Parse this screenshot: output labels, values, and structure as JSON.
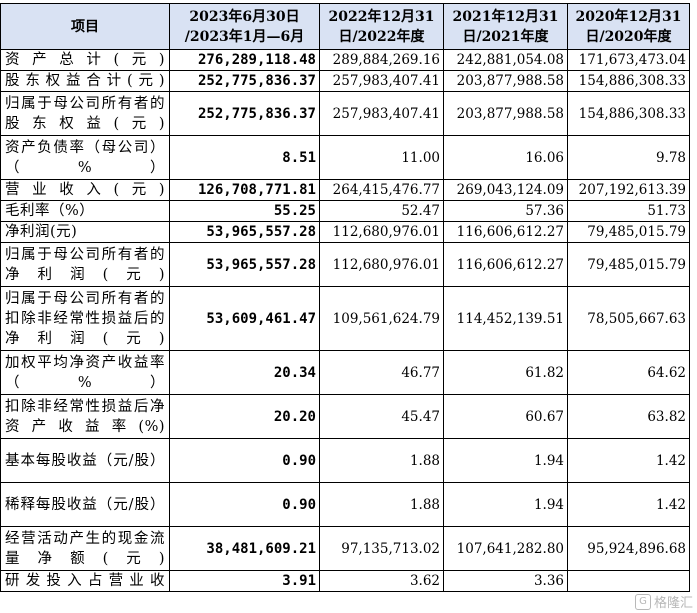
{
  "header": {
    "item": "项目",
    "col1_line1": "2023年6月30日",
    "col1_line2": "/2023年1月—6月",
    "col2_line1": "2022年12月31",
    "col2_line2": "日/2022年度",
    "col3_line1": "2021年12月31",
    "col3_line2": "日/2021年度",
    "col4_line1": "2020年12月31",
    "col4_line2": "日/2020年度"
  },
  "rows": [
    {
      "label": "资产总计(元)",
      "v2023": "276,289,118.48",
      "v2022": "289,884,269.16",
      "v2021": "242,881,054.08",
      "v2020": "171,673,473.04"
    },
    {
      "label": "股东权益合计(元)",
      "v2023": "252,775,836.37",
      "v2022": "257,983,407.41",
      "v2021": "203,877,988.58",
      "v2020": "154,886,308.33"
    },
    {
      "label": "归属于母公司所有者的股东权益(元)",
      "v2023": "252,775,836.37",
      "v2022": "257,983,407.41",
      "v2021": "203,877,988.58",
      "v2020": "154,886,308.33"
    },
    {
      "label": "资产负债率（母公司）（%）",
      "v2023": "8.51",
      "v2022": "11.00",
      "v2021": "16.06",
      "v2020": "9.78"
    },
    {
      "label": "营业收入(元)",
      "v2023": "126,708,771.81",
      "v2022": "264,415,476.77",
      "v2021": "269,043,124.09",
      "v2020": "207,192,613.39"
    },
    {
      "label": "毛利率（%）",
      "v2023": "55.25",
      "v2022": "52.47",
      "v2021": "57.36",
      "v2020": "51.73"
    },
    {
      "label": "净利润(元)",
      "v2023": "53,965,557.28",
      "v2022": "112,680,976.01",
      "v2021": "116,606,612.27",
      "v2020": "79,485,015.79"
    },
    {
      "label": "归属于母公司所有者的净利润(元)",
      "v2023": "53,965,557.28",
      "v2022": "112,680,976.01",
      "v2021": "116,606,612.27",
      "v2020": "79,485,015.79"
    },
    {
      "label": "归属于母公司所有者的扣除非经常性损益后的净利润(元)",
      "v2023": "53,609,461.47",
      "v2022": "109,561,624.79",
      "v2021": "114,452,139.51",
      "v2020": "78,505,667.63"
    },
    {
      "label": "加权平均净资产收益率（%）",
      "v2023": "20.34",
      "v2022": "46.77",
      "v2021": "61.82",
      "v2020": "64.62"
    },
    {
      "label": "扣除非经常性损益后净资产收益率(%)",
      "v2023": "20.20",
      "v2022": "45.47",
      "v2021": "60.67",
      "v2020": "63.82"
    },
    {
      "label": "基本每股收益（元/股）",
      "v2023": "0.90",
      "v2022": "1.88",
      "v2021": "1.94",
      "v2020": "1.42"
    },
    {
      "label": "稀释每股收益（元/股）",
      "v2023": "0.90",
      "v2022": "1.88",
      "v2021": "1.94",
      "v2020": "1.42"
    },
    {
      "label": "经营活动产生的现金流量净额(元)",
      "v2023": "38,481,609.21",
      "v2022": "97,135,713.02",
      "v2021": "107,641,282.80",
      "v2020": "95,924,896.68"
    },
    {
      "label": "研发投入占营业收",
      "v2023": "3.91",
      "v2022": "3.62",
      "v2021": "3.36",
      "v2020": ""
    }
  ],
  "watermark": {
    "icon": "G",
    "text": "格隆汇"
  }
}
